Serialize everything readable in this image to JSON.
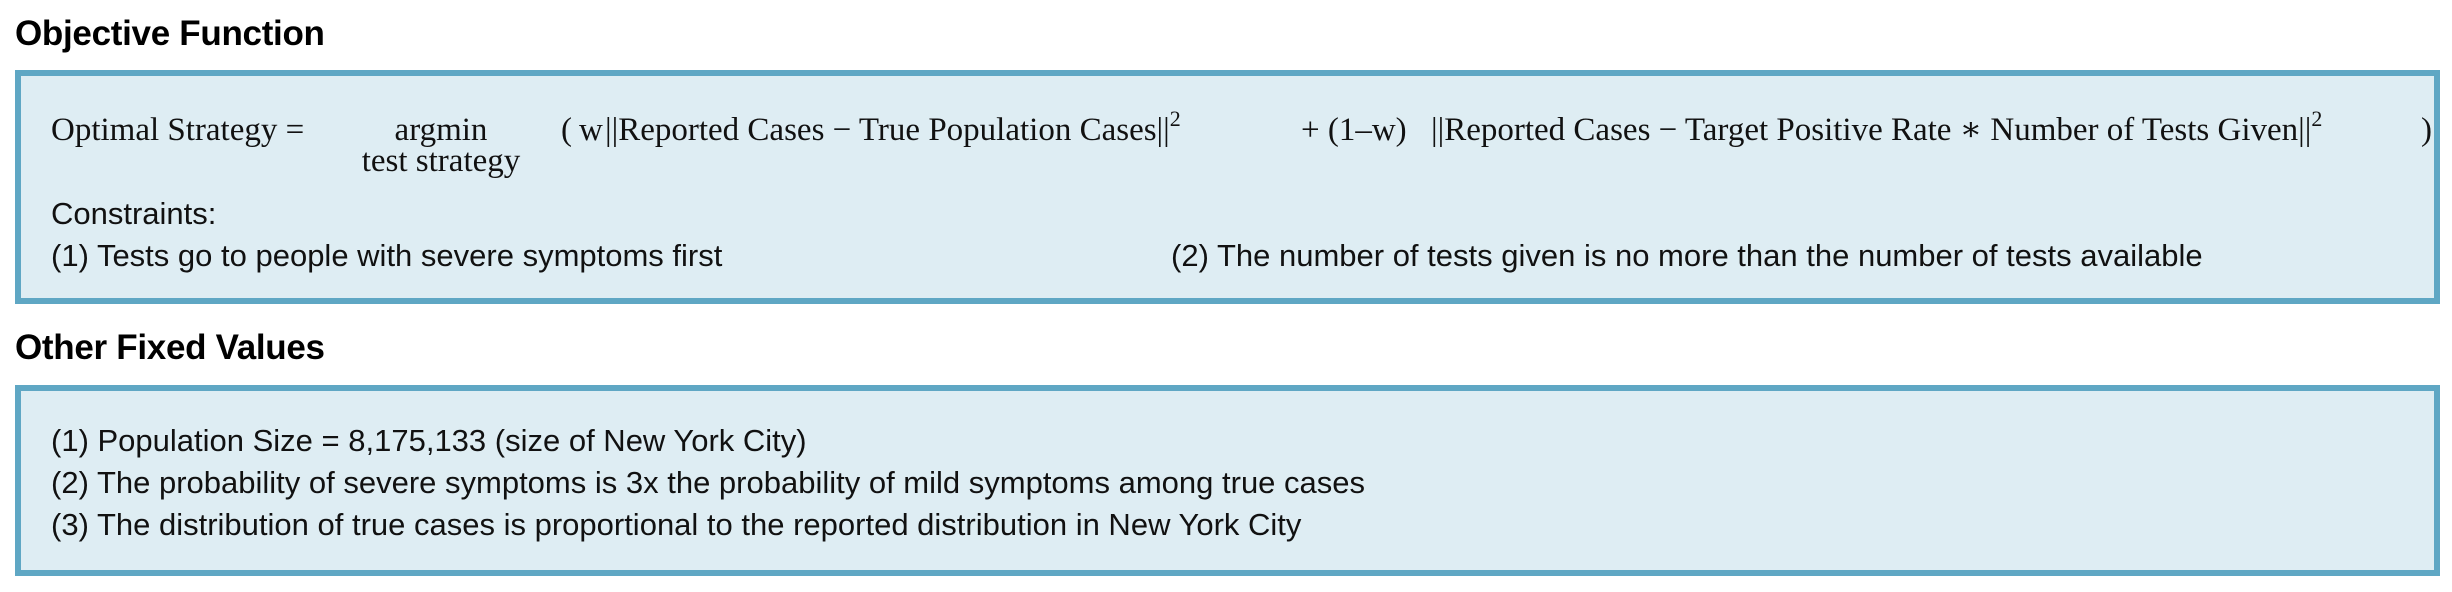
{
  "objective": {
    "heading": "Objective Function",
    "equation": {
      "lhs": "Optimal Strategy =",
      "argmin": "argmin",
      "argmin_subscript": "test strategy",
      "open": "(",
      "weight": "w",
      "term1": "||Reported Cases  − True Population Cases||",
      "term1_power": "2",
      "plus_weight": "+ (1–w)",
      "term2": "||Reported Cases  − Target Positive Rate ∗ Number of Tests Given||",
      "term2_power": "2",
      "close": ")"
    },
    "constraints_label": "Constraints:",
    "constraints": [
      "(1) Tests go to people with severe symptoms first",
      "(2) The number of tests given is no more than the number of tests available"
    ]
  },
  "fixed_values": {
    "heading": "Other Fixed Values",
    "items": [
      "(1) Population Size = 8,175,133 (size of New York City)",
      "(2) The probability of severe symptoms is 3x the probability of mild symptoms among true cases",
      "(3) The distribution of true cases is proportional to the reported distribution in New York City"
    ]
  },
  "colors": {
    "panel_background": "#deedf3",
    "panel_border": "#5fa7c4"
  }
}
